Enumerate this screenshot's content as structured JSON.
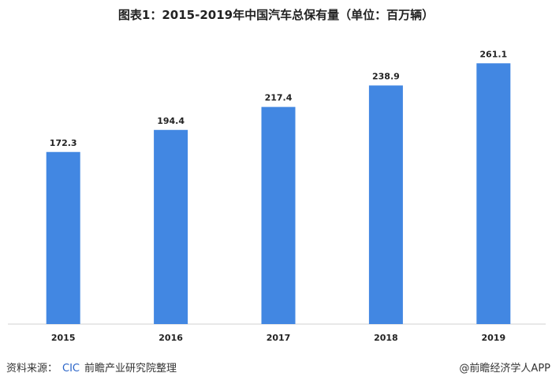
{
  "chart_data": {
    "type": "bar",
    "title": "图表1：2015-2019年中国汽车总保有量（单位：百万辆）",
    "categories": [
      "2015",
      "2016",
      "2017",
      "2018",
      "2019"
    ],
    "values": [
      172.3,
      194.4,
      217.4,
      238.9,
      261.1
    ],
    "value_labels": [
      "172.3",
      "194.4",
      "217.4",
      "238.9",
      "261.1"
    ],
    "xlabel": "",
    "ylabel": "",
    "ylim": [
      0,
      300
    ],
    "grid": false,
    "bar_color": "#4287e2"
  },
  "footer": {
    "source_label": "资料来源：",
    "source_org": "CIC",
    "source_note": "前瞻产业研究院整理",
    "credit": "@前瞻经济学人APP"
  }
}
